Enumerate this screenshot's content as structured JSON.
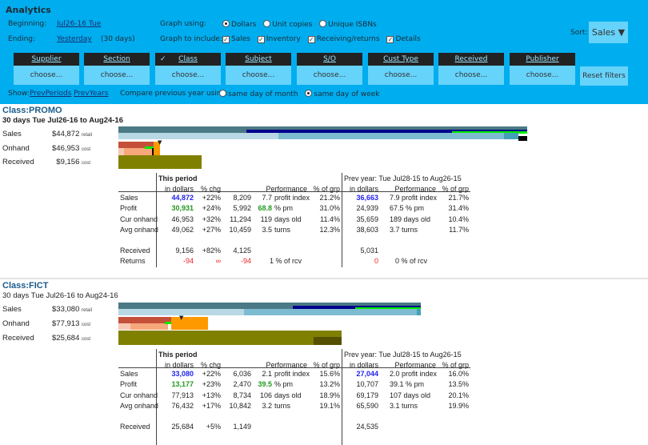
{
  "header": {
    "title": "Analytics",
    "beginning_label": "Beginning:",
    "beginning_value": "Jul26-16 Tue",
    "ending_label": "Ending:",
    "ending_value": "Yesterday",
    "ending_days": "(30 days)",
    "graph_using_label": "Graph using:",
    "graph_using_options": [
      {
        "label": "Dollars",
        "selected": true
      },
      {
        "label": "Unit copies",
        "selected": false
      },
      {
        "label": "Unique ISBNs",
        "selected": false
      }
    ],
    "graph_include_label": "Graph to include:",
    "graph_include_options": [
      {
        "label": "Sales",
        "checked": true
      },
      {
        "label": "Inventory",
        "checked": true
      },
      {
        "label": "Receiving/returns",
        "checked": true
      },
      {
        "label": "Details",
        "checked": true
      }
    ],
    "sort_label": "Sort:",
    "sort_value": "Sales ▼",
    "filters": [
      {
        "label": "Supplier",
        "value": "choose...",
        "active": false
      },
      {
        "label": "Section",
        "value": "choose...",
        "active": false
      },
      {
        "label": "Class",
        "value": "choose...",
        "active": true
      },
      {
        "label": "Subject",
        "value": "choose...",
        "active": false
      },
      {
        "label": "S/O",
        "value": "choose...",
        "active": false
      },
      {
        "label": "Cust Type",
        "value": "choose...",
        "active": false
      },
      {
        "label": "Received",
        "value": "choose...",
        "active": false
      },
      {
        "label": "Publisher",
        "value": "choose...",
        "active": false
      }
    ],
    "reset_label": "Reset filters",
    "show_label": "Show:",
    "show_links": [
      "PrevPeriods",
      "PrevYears"
    ],
    "compare_label": "Compare previous year using:",
    "compare_options": [
      {
        "label": "same day of month",
        "selected": false
      },
      {
        "label": "same day of week",
        "selected": true
      }
    ]
  },
  "sections": [
    {
      "title": "Class:PROMO",
      "subtitle": "30 days Tue Jul26-16 to Aug24-16",
      "summary": [
        {
          "label": "Sales",
          "amount": "$44,872",
          "unit": "retail"
        },
        {
          "label": "Onhand",
          "amount": "$46,953",
          "unit": "cost"
        },
        {
          "label": "Received",
          "amount": "$9,156",
          "unit": "cost"
        }
      ],
      "table": {
        "this_period": "This period",
        "prev_year": "Prev year: Tue Jul28-15 to Aug26-15",
        "headers": [
          "in dollars",
          "% chg",
          "Performance",
          "% of grp",
          "in dollars",
          "Performance",
          "% of grp"
        ],
        "rows": [
          {
            "label": "Sales",
            "dollars": "44,872",
            "chg": "+22%",
            "units": "8,209",
            "perf_num": "7.7",
            "perf_text": "profit index",
            "grp": "21.2%",
            "prev_dollars": "36,663",
            "prev_perf": "7.9 profit index",
            "prev_grp": "21.7%"
          },
          {
            "label": "Profit",
            "dollars": "30,931",
            "chg": "+24%",
            "units": "5,992",
            "perf_num": "68.8",
            "perf_text": "% pm",
            "grp": "31.0%",
            "prev_dollars": "24,939",
            "prev_perf": "67.5 % pm",
            "prev_grp": "31.4%"
          },
          {
            "label": "Cur onhand",
            "dollars": "46,953",
            "chg": "+32%",
            "units": "11,294",
            "perf_num": "119",
            "perf_text": "days old",
            "grp": "11.4%",
            "prev_dollars": "35,659",
            "prev_perf": "189 days old",
            "prev_grp": "10.4%"
          },
          {
            "label": "Avg onhand",
            "dollars": "49,062",
            "chg": "+27%",
            "units": "10,459",
            "perf_num": "3.5",
            "perf_text": "turns",
            "grp": "12.3%",
            "prev_dollars": "38,603",
            "prev_perf": "3.7 turns",
            "prev_grp": "11.7%"
          }
        ],
        "received": {
          "label": "Received",
          "dollars": "9,156",
          "chg": "+82%",
          "units": "4,125",
          "prev_dollars": "5,031"
        },
        "returns": {
          "label": "Returns",
          "dollars": "-94",
          "chg": "∞",
          "units": "-94",
          "perf": "1 % of rcv",
          "prev_dollars": "0",
          "prev_perf": "0 % of rcv"
        }
      }
    },
    {
      "title": "Class:FICT",
      "subtitle": "30 days Tue Jul26-16 to Aug24-16",
      "summary": [
        {
          "label": "Sales",
          "amount": "$33,080",
          "unit": "retail"
        },
        {
          "label": "Onhand",
          "amount": "$77,913",
          "unit": "cost"
        },
        {
          "label": "Received",
          "amount": "$25,684",
          "unit": "cost"
        }
      ],
      "table": {
        "this_period": "This period",
        "prev_year": "Prev year: Tue Jul28-15 to Aug26-15",
        "headers": [
          "in dollars",
          "% chg",
          "Performance",
          "% of grp",
          "in dollars",
          "Performance",
          "% of grp"
        ],
        "rows": [
          {
            "label": "Sales",
            "dollars": "33,080",
            "chg": "+22%",
            "units": "6,036",
            "perf_num": "2.1",
            "perf_text": "profit index",
            "grp": "15.6%",
            "prev_dollars": "27,044",
            "prev_perf": "2.0 profit index",
            "prev_grp": "16.0%"
          },
          {
            "label": "Profit",
            "dollars": "13,177",
            "chg": "+23%",
            "units": "2,470",
            "perf_num": "39.5",
            "perf_text": "% pm",
            "grp": "13.2%",
            "prev_dollars": "10,707",
            "prev_perf": "39.1 % pm",
            "prev_grp": "13.5%"
          },
          {
            "label": "Cur onhand",
            "dollars": "77,913",
            "chg": "+13%",
            "units": "8,734",
            "perf_num": "106",
            "perf_text": "days old",
            "grp": "18.9%",
            "prev_dollars": "69,179",
            "prev_perf": "107 days old",
            "prev_grp": "20.1%"
          },
          {
            "label": "Avg onhand",
            "dollars": "76,432",
            "chg": "+17%",
            "units": "10,842",
            "perf_num": "3.2",
            "perf_text": "turns",
            "grp": "19.1%",
            "prev_dollars": "65,590",
            "prev_perf": "3.1 turns",
            "prev_grp": "19.9%"
          }
        ],
        "received": {
          "label": "Received",
          "dollars": "25,684",
          "chg": "+5%",
          "units": "1,149",
          "prev_dollars": "24,535"
        }
      }
    }
  ],
  "colors": {
    "header_bg": "#00adef",
    "button_bg": "#66d3fb",
    "sales_link": "#2222ee",
    "profit": "#229922",
    "negative": "#ee2222"
  }
}
